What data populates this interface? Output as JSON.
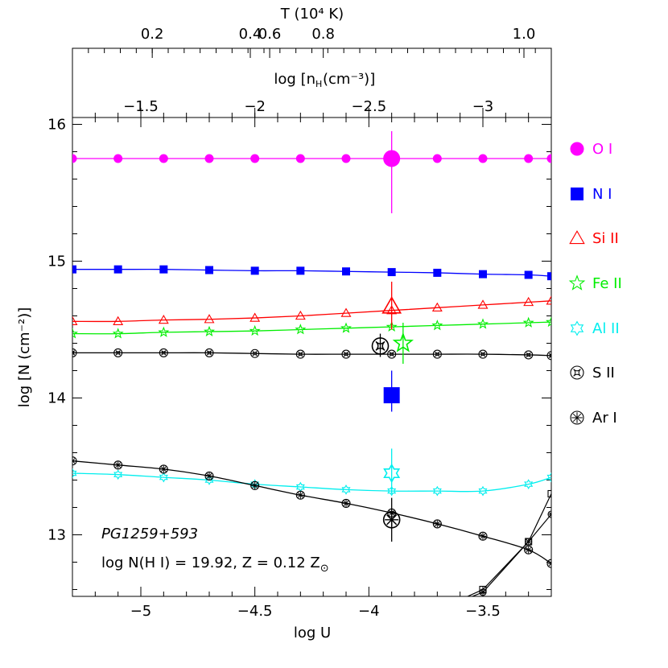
{
  "chart_data": {
    "type": "line",
    "x": [
      -5.2,
      -5.0,
      -4.8,
      -4.6,
      -4.4,
      -4.2,
      -4.0,
      -3.8,
      -3.6,
      -3.4,
      -3.3
    ],
    "xlabel": "log U",
    "ylabel": "log [N (cm⁻²)]",
    "xlim": [
      -5.3,
      -3.2
    ],
    "ylim": [
      12.55,
      16.05
    ],
    "x_ticks": [
      -5.0,
      -4.5,
      -4.0,
      -3.5
    ],
    "x_tick_labels": [
      "−5",
      "−4.5",
      "−4",
      "−3.5"
    ],
    "y_ticks": [
      13,
      14,
      15,
      16
    ],
    "y_tick_labels": [
      "13",
      "14",
      "15",
      "16"
    ],
    "top_axis_T": {
      "label": "T (10⁴ K)",
      "ticks": [
        {
          "x": -4.95,
          "label": "0.2"
        },
        {
          "x": -4.52,
          "label": "0.4"
        },
        {
          "x": -4.435,
          "label": "0.6"
        },
        {
          "x": -4.2,
          "label": "0.8"
        },
        {
          "x": -3.32,
          "label": "1.0"
        }
      ]
    },
    "top_axis_nH": {
      "label": "log [n",
      "label_sub": "H",
      "label_tail": " (cm⁻³)]",
      "ticks": [
        {
          "x": -5.0,
          "label": "−1.5"
        },
        {
          "x": -4.5,
          "label": "−2"
        },
        {
          "x": -4.0,
          "label": "−2.5"
        },
        {
          "x": -3.5,
          "label": "−3"
        }
      ]
    },
    "series": [
      {
        "name": "O I",
        "color": "#ff00ff",
        "marker": "circle-filled",
        "x": [
          -5.3,
          -5.1,
          -4.9,
          -4.7,
          -4.5,
          -4.3,
          -4.1,
          -3.9,
          -3.7,
          -3.5,
          -3.3,
          -3.2
        ],
        "values": [
          15.75,
          15.75,
          15.75,
          15.75,
          15.75,
          15.75,
          15.75,
          15.75,
          15.75,
          15.75,
          15.75,
          15.75
        ]
      },
      {
        "name": "N I",
        "color": "#0000ff",
        "marker": "square-filled",
        "x": [
          -5.3,
          -5.1,
          -4.9,
          -4.7,
          -4.5,
          -4.3,
          -4.1,
          -3.9,
          -3.7,
          -3.5,
          -3.3,
          -3.2
        ],
        "values": [
          14.94,
          14.94,
          14.94,
          14.935,
          14.93,
          14.93,
          14.925,
          14.92,
          14.915,
          14.905,
          14.9,
          14.89
        ]
      },
      {
        "name": "Si II",
        "color": "#ff0000",
        "marker": "triangle-open",
        "x": [
          -5.3,
          -5.1,
          -4.9,
          -4.7,
          -4.5,
          -4.3,
          -4.1,
          -3.9,
          -3.7,
          -3.5,
          -3.3,
          -3.2
        ],
        "values": [
          14.56,
          14.56,
          14.57,
          14.575,
          14.585,
          14.6,
          14.62,
          14.64,
          14.66,
          14.68,
          14.7,
          14.71
        ]
      },
      {
        "name": "Fe II",
        "color": "#00ee00",
        "marker": "star-open",
        "x": [
          -5.3,
          -5.1,
          -4.9,
          -4.7,
          -4.5,
          -4.3,
          -4.1,
          -3.9,
          -3.7,
          -3.5,
          -3.3,
          -3.2
        ],
        "values": [
          14.47,
          14.47,
          14.48,
          14.485,
          14.49,
          14.5,
          14.51,
          14.52,
          14.53,
          14.54,
          14.55,
          14.555
        ]
      },
      {
        "name": "Al II",
        "color": "#00eeee",
        "marker": "dstar-open",
        "x": [
          -5.3,
          -5.1,
          -4.9,
          -4.7,
          -4.5,
          -4.3,
          -4.1,
          -3.9,
          -3.7,
          -3.5,
          -3.3,
          -3.2
        ],
        "values": [
          13.45,
          13.44,
          13.42,
          13.4,
          13.37,
          13.35,
          13.33,
          13.32,
          13.32,
          13.32,
          13.37,
          13.42
        ]
      },
      {
        "name": "S II",
        "color": "#000000",
        "marker": "sii-open",
        "x": [
          -5.3,
          -5.1,
          -4.9,
          -4.7,
          -4.5,
          -4.3,
          -4.1,
          -3.9,
          -3.7,
          -3.5,
          -3.3,
          -3.2
        ],
        "values": [
          14.33,
          14.33,
          14.33,
          14.33,
          14.325,
          14.32,
          14.32,
          14.32,
          14.32,
          14.32,
          14.315,
          14.31
        ]
      },
      {
        "name": "Ar I",
        "color": "#000000",
        "marker": "asterisk-circle",
        "x": [
          -5.3,
          -5.1,
          -4.9,
          -4.7,
          -4.5,
          -4.3,
          -4.1,
          -3.9,
          -3.7,
          -3.5,
          -3.3,
          -3.2
        ],
        "values": [
          13.54,
          13.51,
          13.48,
          13.43,
          13.36,
          13.29,
          13.23,
          13.16,
          13.08,
          12.99,
          12.89,
          12.79
        ]
      }
    ],
    "extra_lines": [
      {
        "x": [
          -3.7,
          -3.5,
          -3.3,
          -3.2
        ],
        "values": [
          12.45,
          12.6,
          12.95,
          13.3
        ],
        "marker": "square-open"
      },
      {
        "x": [
          -3.7,
          -3.5,
          -3.3,
          -3.2
        ],
        "values": [
          12.45,
          12.58,
          12.95,
          13.15
        ],
        "marker": "asterisk-circle"
      }
    ],
    "observations": [
      {
        "species": "O I",
        "x": -3.9,
        "y": 15.75,
        "err_low": 15.35,
        "err_high": 15.95,
        "marker": "circle-filled",
        "color": "#ff00ff"
      },
      {
        "species": "N I",
        "x": -3.9,
        "y": 14.02,
        "err_low": 13.9,
        "err_high": 14.2,
        "marker": "square-filled",
        "color": "#0000ff"
      },
      {
        "species": "Si II",
        "x": -3.9,
        "y": 14.67,
        "err_low": 14.5,
        "err_high": 14.85,
        "marker": "triangle-open",
        "color": "#ff0000"
      },
      {
        "species": "Fe II",
        "x": -3.85,
        "y": 14.4,
        "err_low": 14.25,
        "err_high": 14.55,
        "marker": "star-open",
        "color": "#00ee00"
      },
      {
        "species": "Al II",
        "x": -3.9,
        "y": 13.45,
        "err_low": 13.3,
        "err_high": 13.63,
        "marker": "dstar-open",
        "color": "#00eeee"
      },
      {
        "species": "S II",
        "x": -3.95,
        "y": 14.38,
        "err_low": 14.3,
        "err_high": 14.47,
        "marker": "sii-open",
        "color": "#000000"
      },
      {
        "species": "Ar I",
        "x": -3.9,
        "y": 13.11,
        "err_low": 12.95,
        "err_high": 13.27,
        "marker": "asterisk-circle",
        "color": "#000000"
      }
    ],
    "annotations": {
      "object": "PG1259+593",
      "params_prefix": "log N(H I) = 19.92, Z = 0.12 Z",
      "params_symbol": "⊙"
    },
    "legend_placement": "right",
    "grid": false
  }
}
